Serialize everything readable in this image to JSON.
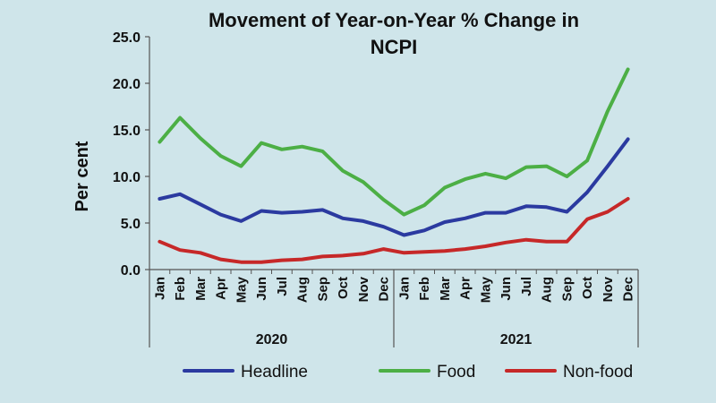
{
  "chart_data": {
    "type": "line",
    "title": "Movement of Year-on-Year % Change in NCPI",
    "title_lines": [
      "Movement of Year-on-Year % Change in",
      "NCPI"
    ],
    "ylabel": "Per cent",
    "xlabel": "",
    "ylim": [
      0,
      25
    ],
    "yticks": [
      "0.0",
      "5.0",
      "10.0",
      "15.0",
      "20.0",
      "25.0"
    ],
    "categories": [
      "Jan",
      "Feb",
      "Mar",
      "Apr",
      "May",
      "Jun",
      "Jul",
      "Aug",
      "Sep",
      "Oct",
      "Nov",
      "Dec",
      "Jan",
      "Feb",
      "Mar",
      "Apr",
      "May",
      "Jun",
      "Jul",
      "Aug",
      "Sep",
      "Oct",
      "Nov",
      "Dec"
    ],
    "year_groups": [
      {
        "label": "2020",
        "start": 0,
        "end": 11
      },
      {
        "label": "2021",
        "start": 12,
        "end": 23
      }
    ],
    "series": [
      {
        "name": "Headline",
        "color": "#2b3aa0",
        "values": [
          7.6,
          8.1,
          7.0,
          5.9,
          5.2,
          6.3,
          6.1,
          6.2,
          6.4,
          5.5,
          5.2,
          4.6,
          3.7,
          4.2,
          5.1,
          5.5,
          6.1,
          6.1,
          6.8,
          6.7,
          6.2,
          8.3,
          11.1,
          14.0
        ]
      },
      {
        "name": "Food",
        "color": "#4caf45",
        "values": [
          13.7,
          16.3,
          14.1,
          12.2,
          11.1,
          13.6,
          12.9,
          13.2,
          12.7,
          10.6,
          9.4,
          7.5,
          5.9,
          6.9,
          8.8,
          9.7,
          10.3,
          9.8,
          11.0,
          11.1,
          10.0,
          11.7,
          17.0,
          21.5
        ]
      },
      {
        "name": "Non-food",
        "color": "#c62828",
        "values": [
          3.0,
          2.1,
          1.8,
          1.1,
          0.8,
          0.8,
          1.0,
          1.1,
          1.4,
          1.5,
          1.7,
          2.2,
          1.8,
          1.9,
          2.0,
          2.2,
          2.5,
          2.9,
          3.2,
          3.0,
          3.0,
          5.4,
          6.2,
          7.6
        ]
      }
    ],
    "legend": [
      "Headline",
      "Food",
      "Non-food"
    ],
    "legend_position": "bottom",
    "grid": false
  }
}
